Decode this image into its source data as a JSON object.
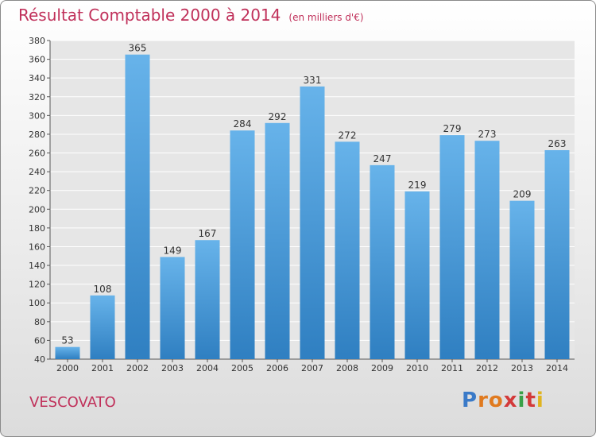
{
  "header": {
    "title": "Résultat Comptable 2000 à 2014",
    "subtitle": "(en milliers d'€)"
  },
  "footer": {
    "commune": "VESCOVATO",
    "logo_text": "Proxiti"
  },
  "colors": {
    "title": "#c0305a",
    "bar_top": "#67b3ea",
    "bar_bottom": "#2f7fc1",
    "grid": "#ffffff",
    "plot_bg": "#e6e6e6"
  },
  "chart_data": {
    "type": "bar",
    "title": "Résultat Comptable 2000 à 2014",
    "subtitle": "(en milliers d'€)",
    "categories": [
      "2000",
      "2001",
      "2002",
      "2003",
      "2004",
      "2005",
      "2006",
      "2007",
      "2008",
      "2009",
      "2010",
      "2011",
      "2012",
      "2013",
      "2014"
    ],
    "values": [
      53,
      108,
      365,
      149,
      167,
      284,
      292,
      331,
      272,
      247,
      219,
      279,
      273,
      209,
      263
    ],
    "ylim": [
      40,
      380
    ],
    "yticks": [
      40,
      60,
      80,
      100,
      120,
      140,
      160,
      180,
      200,
      220,
      240,
      260,
      280,
      300,
      320,
      340,
      360,
      380
    ],
    "grid": true,
    "data_labels": true,
    "legend": "none"
  }
}
